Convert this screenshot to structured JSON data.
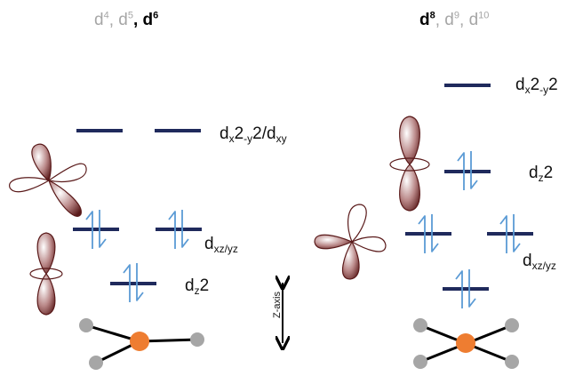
{
  "left_panel": {
    "header": {
      "configs": [
        {
          "base": "d",
          "exp": "4",
          "highlight": false
        },
        {
          "base": "d",
          "exp": "5",
          "highlight": false
        },
        {
          "base": "d",
          "exp": "6",
          "highlight": true
        }
      ],
      "separator": ", "
    },
    "labels": {
      "upper": {
        "pre": "d",
        "sub": "x",
        "mid": "2",
        "sub2": "-y",
        "post": "2/d",
        "sub3": "xy"
      },
      "middle": {
        "pre": "d",
        "sub": "xz/yz"
      },
      "lower": {
        "pre": "d",
        "sub": "z",
        "post": "2"
      }
    }
  },
  "right_panel": {
    "header": {
      "configs": [
        {
          "base": "d",
          "exp": "8",
          "highlight": true
        },
        {
          "base": "d",
          "exp": "9",
          "highlight": false
        },
        {
          "base": "d",
          "exp": "10",
          "highlight": false
        }
      ],
      "separator": ", "
    },
    "labels": {
      "top": {
        "pre": "d",
        "sub": "x",
        "mid": "2",
        "sub2": "-y",
        "post": "2"
      },
      "second": {
        "pre": "d",
        "sub": "z",
        "post": "2"
      },
      "middle": {
        "pre": "d",
        "sub": "xz/yz"
      }
    }
  },
  "axis_label": "Z-axis",
  "colors": {
    "level": "#1f2a5c",
    "electron_arrow": "#5b9bd5",
    "lobe_dark": "#5a1a1a",
    "lobe_light": "#ffffff",
    "metal": "#ee7d31",
    "ligand": "#a6a6a6"
  }
}
